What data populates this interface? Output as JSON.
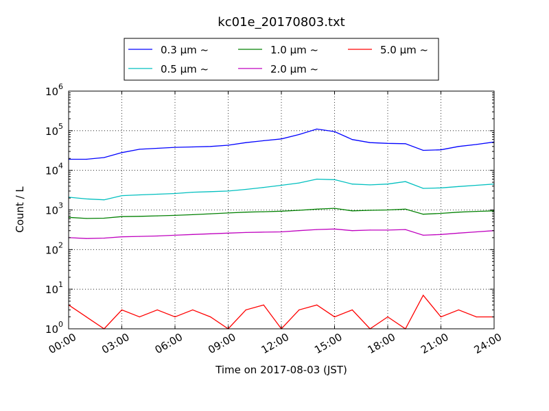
{
  "chart_data": {
    "type": "line",
    "title": "kc01e_20170803.txt",
    "xlabel": "Time on 2017-08-03 (JST)",
    "ylabel": "Count / L",
    "yscale": "log",
    "ylim": [
      1,
      1000000
    ],
    "y_ticks": [
      {
        "value": 1,
        "base": "10",
        "exp": "0"
      },
      {
        "value": 10,
        "base": "10",
        "exp": "1"
      },
      {
        "value": 100,
        "base": "10",
        "exp": "2"
      },
      {
        "value": 1000,
        "base": "10",
        "exp": "3"
      },
      {
        "value": 10000,
        "base": "10",
        "exp": "4"
      },
      {
        "value": 100000,
        "base": "10",
        "exp": "5"
      },
      {
        "value": 1000000,
        "base": "10",
        "exp": "6"
      }
    ],
    "x_ticks": [
      "00:00",
      "03:00",
      "06:00",
      "09:00",
      "12:00",
      "15:00",
      "18:00",
      "21:00",
      "24:00"
    ],
    "xlim": [
      "00:00",
      "24:00"
    ],
    "grid": true,
    "legend_position": "top-center",
    "x": [
      "00:00",
      "01:00",
      "02:00",
      "03:00",
      "04:00",
      "05:00",
      "06:00",
      "07:00",
      "08:00",
      "09:00",
      "10:00",
      "11:00",
      "12:00",
      "13:00",
      "14:00",
      "15:00",
      "16:00",
      "17:00",
      "18:00",
      "19:00",
      "20:00",
      "21:00",
      "22:00",
      "23:00",
      "24:00"
    ],
    "series": [
      {
        "name": "0.3 μm ~",
        "color": "#0000ff",
        "values": [
          19000,
          19000,
          21000,
          28000,
          34000,
          36000,
          38000,
          39000,
          40000,
          43000,
          50000,
          56000,
          62000,
          80000,
          110000,
          95000,
          60000,
          50000,
          48000,
          47000,
          32000,
          33000,
          40000,
          45000,
          52000
        ]
      },
      {
        "name": "0.5 μm ~",
        "color": "#00bfbf",
        "values": [
          2100,
          1900,
          1800,
          2300,
          2400,
          2500,
          2600,
          2800,
          2900,
          3000,
          3300,
          3700,
          4200,
          4800,
          6000,
          5800,
          4500,
          4300,
          4500,
          5200,
          3500,
          3600,
          3900,
          4200,
          4500
        ]
      },
      {
        "name": "1.0 μm ~",
        "color": "#008000",
        "values": [
          650,
          610,
          620,
          680,
          690,
          710,
          730,
          760,
          800,
          840,
          880,
          900,
          930,
          980,
          1050,
          1100,
          950,
          980,
          1000,
          1050,
          780,
          820,
          880,
          920,
          950
        ]
      },
      {
        "name": "2.0 μm ~",
        "color": "#bf00bf",
        "values": [
          200,
          190,
          195,
          210,
          215,
          220,
          230,
          240,
          250,
          260,
          270,
          275,
          280,
          300,
          320,
          330,
          300,
          310,
          310,
          320,
          230,
          240,
          260,
          280,
          300
        ]
      },
      {
        "name": "5.0 μm ~",
        "color": "#ff0000",
        "values": [
          4,
          2,
          1,
          3,
          2,
          3,
          2,
          3,
          2,
          1,
          3,
          4,
          1,
          3,
          4,
          2,
          3,
          1,
          2,
          1,
          7,
          2,
          3,
          2,
          2
        ]
      }
    ]
  }
}
